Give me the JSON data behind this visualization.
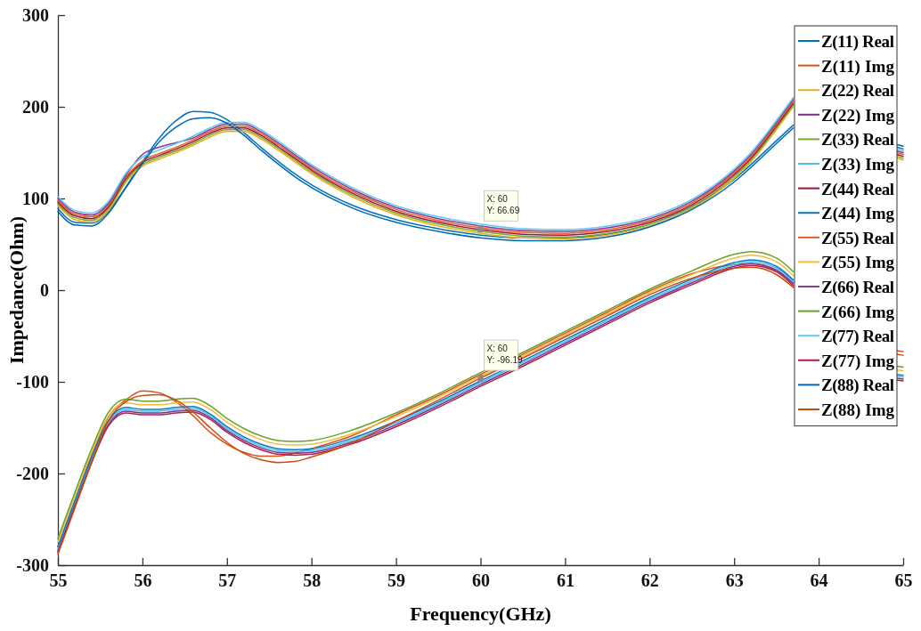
{
  "chart_data": {
    "type": "line",
    "xlabel": "Frequency(GHz)",
    "ylabel": "Impedance(Ohm)",
    "x": [
      55,
      55.2,
      55.4,
      55.6,
      55.8,
      56,
      56.2,
      56.4,
      56.6,
      56.8,
      57,
      57.2,
      57.4,
      57.6,
      57.8,
      58,
      58.5,
      59,
      59.5,
      60,
      60.5,
      61,
      61.5,
      62,
      62.5,
      63,
      63.2,
      63.5,
      63.7,
      64.3,
      64.92,
      65
    ],
    "xlim": [
      55,
      65
    ],
    "xticks": [
      55,
      56,
      57,
      58,
      59,
      60,
      61,
      62,
      63,
      64,
      65
    ],
    "ylim": [
      -300,
      300
    ],
    "yticks": [
      -300,
      -200,
      -100,
      0,
      100,
      200,
      300
    ],
    "grid": false,
    "legend": "top right",
    "line_style": "solid",
    "marker": "none",
    "series": [
      {
        "name": "Z(11) Real",
        "color": "#0072bd",
        "values": [
          89,
          74,
          73,
          86,
          112,
          140,
          166,
          185,
          195,
          194,
          186,
          172,
          156,
          141,
          127,
          115,
          92,
          77,
          67,
          60,
          57,
          57,
          61,
          72,
          91,
          121,
          137,
          163,
          180,
          null,
          156,
          154
        ]
      },
      {
        "name": "Z(11) Img",
        "color": "#d95319",
        "values": [
          -280,
          -230,
          -180,
          -138,
          -120,
          -110,
          -112,
          -122,
          -137,
          -155,
          -168,
          -177,
          -181,
          -181,
          -178,
          -173,
          -158,
          -136,
          -115,
          -92,
          -70,
          -47,
          -24,
          -1,
          18,
          28,
          29,
          21,
          8,
          null,
          -66,
          -67
        ]
      },
      {
        "name": "Z(22) Real",
        "color": "#edb120",
        "values": [
          92,
          77,
          74,
          87,
          117,
          135,
          143,
          150,
          158,
          167,
          173,
          173,
          165,
          153,
          140,
          127,
          101,
          82,
          70,
          62,
          57,
          56,
          60,
          70,
          89,
          122,
          140,
          175,
          200,
          null,
          144,
          142
        ]
      },
      {
        "name": "Z(22) Img",
        "color": "#7e2f8e",
        "values": [
          -284,
          -234,
          -186,
          -146,
          -132,
          -134,
          -134,
          -132,
          -131,
          -139,
          -153,
          -164,
          -172,
          -177,
          -178,
          -177,
          -165,
          -147,
          -126,
          -103,
          -81,
          -58,
          -35,
          -12,
          8,
          26,
          29,
          22,
          7,
          null,
          -96,
          -97
        ]
      },
      {
        "name": "Z(33) Real",
        "color": "#77ac30",
        "values": [
          94,
          79,
          76,
          89,
          119,
          137,
          145,
          152,
          160,
          169,
          175,
          175,
          167,
          155,
          142,
          129,
          103,
          84,
          72,
          64,
          59,
          58,
          62,
          72,
          91,
          124,
          142,
          177,
          202,
          null,
          146,
          144
        ]
      },
      {
        "name": "Z(33) Img",
        "color": "#4dbeee",
        "values": [
          -282,
          -232,
          -184,
          -144,
          -130,
          -132,
          -132,
          -130,
          -129,
          -137,
          -151,
          -162,
          -170,
          -175,
          -176,
          -175,
          -163,
          -145,
          -124,
          -101,
          -79,
          -56,
          -33,
          -10,
          10,
          28,
          31,
          24,
          9,
          null,
          -94,
          -95
        ]
      },
      {
        "name": "Z(44) Real",
        "color": "#a2142f",
        "values": [
          96,
          81,
          78,
          91,
          121,
          139,
          147,
          154,
          162,
          171,
          177,
          177,
          169,
          157,
          144,
          131,
          105,
          86,
          74,
          66,
          61,
          60,
          64,
          74,
          93,
          126,
          144,
          179,
          204,
          null,
          148,
          146
        ]
      },
      {
        "name": "Z(44) Img",
        "color": "#0a78c2",
        "values": [
          -280,
          -230,
          -182,
          -142,
          -128,
          -130,
          -130,
          -128,
          -127,
          -135,
          -149,
          -160,
          -168,
          -173,
          -174,
          -173,
          -161,
          -143,
          -122,
          -99,
          -77,
          -54,
          -31,
          -8,
          12,
          30,
          33,
          26,
          11,
          null,
          -92,
          -93
        ]
      },
      {
        "name": "Z(55) Real",
        "color": "#e0602a",
        "values": [
          98,
          83,
          80,
          93,
          123,
          141,
          149,
          156,
          164,
          173,
          179,
          179,
          171,
          159,
          146,
          133,
          107,
          88,
          76,
          68,
          63,
          62,
          66,
          76,
          95,
          128,
          146,
          181,
          206,
          null,
          150,
          148
        ]
      },
      {
        "name": "Z(55) Img",
        "color": "#f0bc40",
        "values": [
          -275,
          -225,
          -177,
          -137,
          -123,
          -125,
          -125,
          -123,
          -122,
          -130,
          -144,
          -155,
          -163,
          -168,
          -169,
          -168,
          -156,
          -138,
          -117,
          -94,
          -72,
          -49,
          -26,
          -3,
          17,
          35,
          38,
          31,
          16,
          null,
          -87,
          -88
        ]
      },
      {
        "name": "Z(66) Real",
        "color": "#8a3a9a",
        "values": [
          100,
          85,
          82,
          95,
          125,
          148,
          156,
          161,
          166,
          175,
          181,
          181,
          173,
          161,
          148,
          135,
          109,
          90,
          78,
          70,
          65,
          64,
          68,
          78,
          97,
          130,
          148,
          183,
          208,
          null,
          152,
          150
        ]
      },
      {
        "name": "Z(66) Img",
        "color": "#6aa224",
        "values": [
          -271,
          -221,
          -173,
          -133,
          -119,
          -121,
          -121,
          -119,
          -118,
          -126,
          -140,
          -151,
          -159,
          -164,
          -165,
          -164,
          -152,
          -134,
          -113,
          -90,
          -68,
          -45,
          -22,
          1,
          21,
          39,
          42,
          35,
          20,
          null,
          -83,
          -84
        ]
      },
      {
        "name": "Z(77) Real",
        "color": "#60c8f2",
        "values": [
          102,
          87,
          84,
          97,
          127,
          145,
          153,
          160,
          168,
          177,
          183,
          183,
          175,
          163,
          150,
          137,
          111,
          92,
          80,
          72,
          67,
          66,
          70,
          80,
          99,
          132,
          150,
          185,
          210,
          null,
          154,
          152
        ]
      },
      {
        "name": "Z(77) Img",
        "color": "#b02040",
        "values": [
          -286,
          -236,
          -188,
          -148,
          -134,
          -136,
          -136,
          -134,
          -133,
          -141,
          -155,
          -166,
          -174,
          -179,
          -180,
          -179,
          -167,
          -149,
          -128,
          -105,
          -83,
          -60,
          -37,
          -14,
          6,
          24,
          27,
          20,
          5,
          null,
          -98,
          -99
        ]
      },
      {
        "name": "Z(88) Real",
        "color": "#0066b0",
        "values": [
          86,
          71,
          70,
          84,
          111,
          138,
          162,
          178,
          187,
          188,
          182,
          169,
          153,
          138,
          124,
          112,
          89,
          74,
          64,
          57,
          54,
          54,
          58,
          69,
          88,
          118,
          134,
          160,
          177,
          null,
          159,
          157
        ]
      },
      {
        "name": "Z(88) Img",
        "color": "#cc4a10",
        "values": [
          -288,
          -238,
          -188,
          -142,
          -122,
          -115,
          -114,
          -120,
          -133,
          -150,
          -166,
          -178,
          -185,
          -188,
          -187,
          -182,
          -166,
          -143,
          -120,
          -96,
          -74,
          -51,
          -28,
          -5,
          13,
          24,
          25,
          17,
          3,
          null,
          -70,
          -71
        ]
      }
    ],
    "annotations": [
      {
        "text": "X: 60\nY: 66.69",
        "x": 60,
        "y": 66.69
      },
      {
        "text": "X: 60\nY: -96.19",
        "x": 60,
        "y": -96.19
      }
    ]
  }
}
